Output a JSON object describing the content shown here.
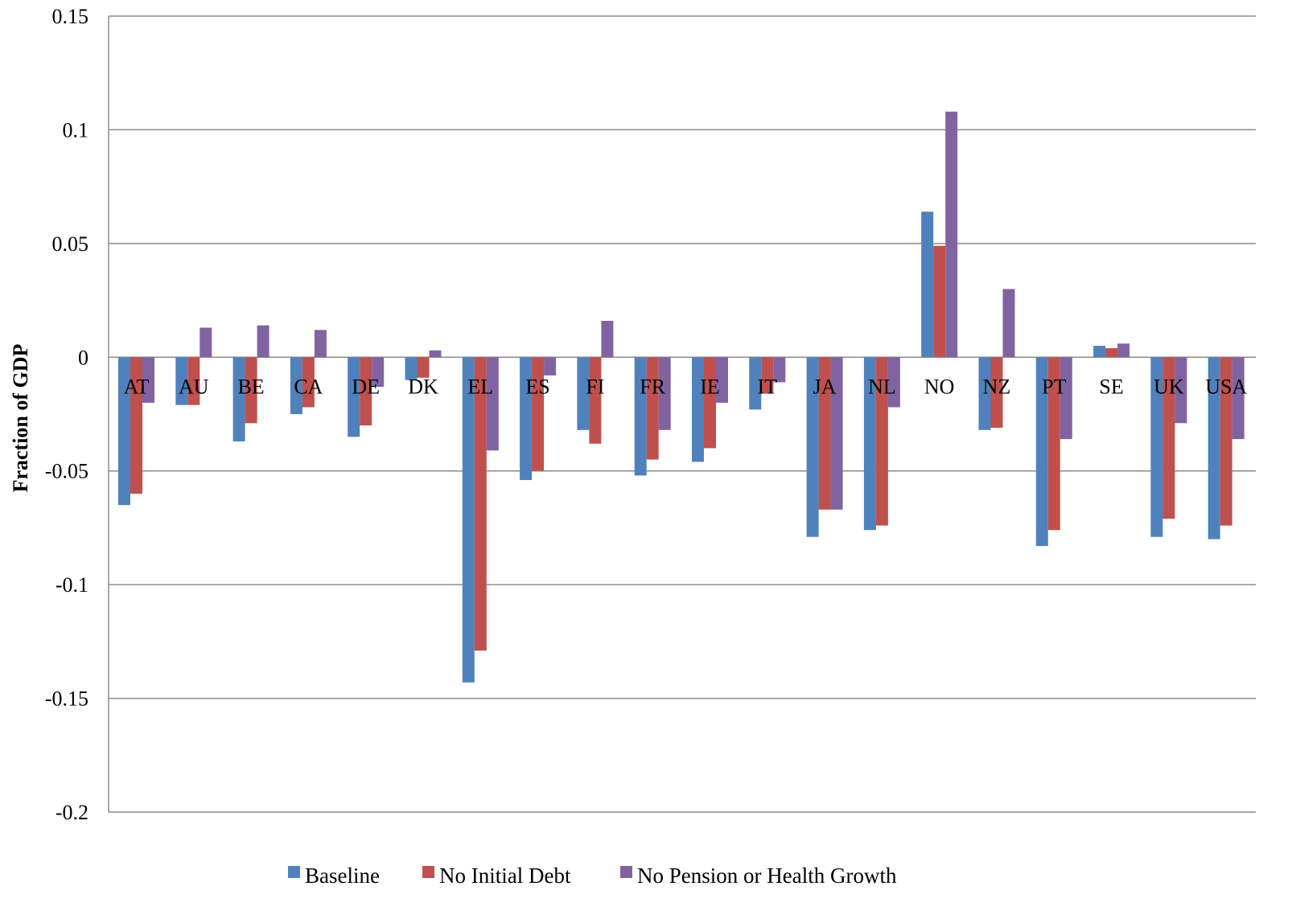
{
  "chart_data": {
    "type": "bar",
    "title": "",
    "xlabel": "",
    "ylabel": "Fraction of GDP",
    "ylim": [
      -0.2,
      0.15
    ],
    "yticks": [
      0.15,
      0.1,
      0.05,
      0,
      -0.05,
      -0.1,
      -0.15,
      -0.2
    ],
    "ytick_labels": [
      "0.15",
      "0.1",
      "0.05",
      "0",
      "-0.05",
      "-0.1",
      "-0.15",
      "-0.2"
    ],
    "grid": "horizontal",
    "legend_position": "bottom",
    "categories": [
      "AT",
      "AU",
      "BE",
      "CA",
      "DE",
      "DK",
      "EL",
      "ES",
      "FI",
      "FR",
      "IE",
      "IT",
      "JA",
      "NL",
      "NO",
      "NZ",
      "PT",
      "SE",
      "UK",
      "USA"
    ],
    "series": [
      {
        "name": "Baseline",
        "color": "#4f81bd",
        "values": [
          -0.065,
          -0.021,
          -0.037,
          -0.025,
          -0.035,
          -0.01,
          -0.143,
          -0.054,
          -0.032,
          -0.052,
          -0.046,
          -0.023,
          -0.079,
          -0.076,
          0.064,
          -0.032,
          -0.083,
          0.005,
          -0.079,
          -0.08
        ]
      },
      {
        "name": "No Initial Debt",
        "color": "#c0504d",
        "values": [
          -0.06,
          -0.021,
          -0.029,
          -0.022,
          -0.03,
          -0.009,
          -0.129,
          -0.05,
          -0.038,
          -0.045,
          -0.04,
          -0.016,
          -0.067,
          -0.074,
          0.049,
          -0.031,
          -0.076,
          0.004,
          -0.071,
          -0.074
        ]
      },
      {
        "name": "No Pension or Health Growth",
        "color": "#8064a2",
        "values": [
          -0.02,
          0.013,
          0.014,
          0.012,
          -0.013,
          0.003,
          -0.041,
          -0.008,
          0.016,
          -0.032,
          -0.02,
          -0.011,
          -0.067,
          -0.022,
          0.108,
          0.03,
          -0.036,
          0.006,
          -0.029,
          -0.036
        ]
      }
    ]
  }
}
